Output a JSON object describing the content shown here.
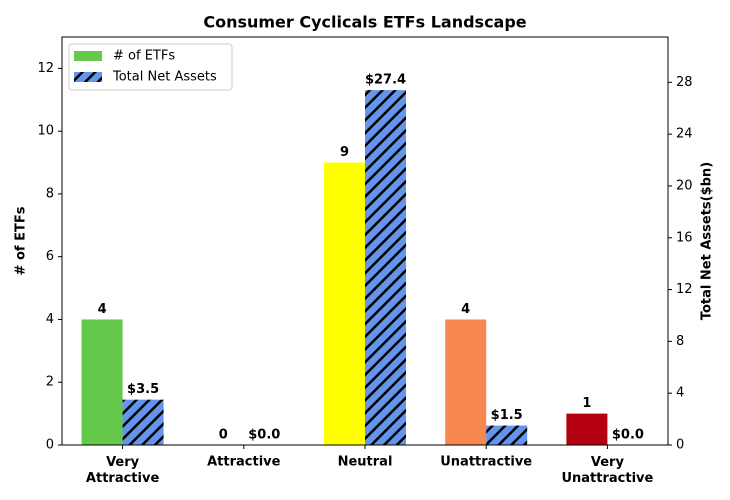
{
  "chart_data": {
    "type": "bar",
    "title": "Consumer Cyclicals ETFs Landscape",
    "categories": [
      "Very\nAttractive",
      "Attractive",
      "Neutral",
      "Unattractive",
      "Very\nUnattractive"
    ],
    "ylabel": "# of ETFs",
    "y2label": "Total Net Assets($bn)",
    "series": [
      {
        "name": "# of ETFs",
        "colors": [
          "#64c94b",
          "#a6d96a",
          "#ffff00",
          "#f98850",
          "#b50012"
        ],
        "values": [
          4,
          0,
          9,
          4,
          1
        ]
      },
      {
        "name": "Total Net Assets",
        "color": "#6495ed",
        "hatch": true,
        "axis": "y2",
        "values": [
          3.5,
          0,
          27.4,
          1.5,
          0
        ],
        "value_labels": [
          "$3.5",
          "$0.0",
          "$27.4",
          "$1.5",
          "$0.0"
        ]
      }
    ],
    "ylim": [
      0,
      13
    ],
    "yticks": [
      0,
      2,
      4,
      6,
      8,
      10,
      12
    ],
    "y2lim": [
      0,
      31.5
    ],
    "y2ticks": [
      0,
      4,
      8,
      12,
      16,
      20,
      24,
      28
    ],
    "legend": "upper left",
    "grid": false
  }
}
